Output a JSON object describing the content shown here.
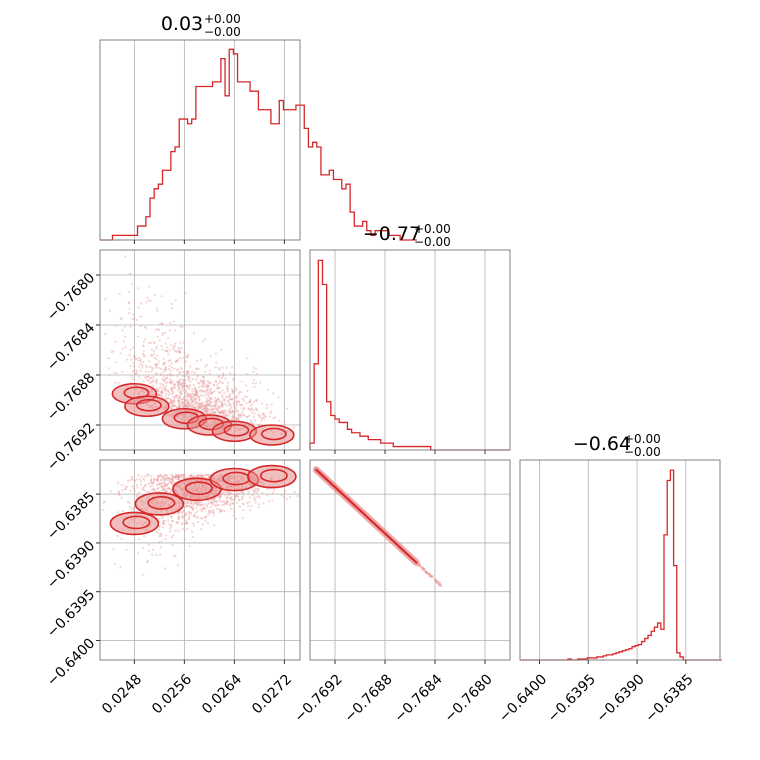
{
  "colors": {
    "series": "#d62728",
    "scatter": "#e8a0a0",
    "contour_fill": "#e88a8b",
    "grid": "#b0b0b0",
    "frame": "#808080"
  },
  "chart_data": [
    {
      "type": "histogram",
      "panel": "diag-0",
      "title": {
        "value": "0.03",
        "upper": "+0.00",
        "lower": "−0.00"
      },
      "xlim": [
        0.02425,
        0.02745
      ],
      "x_ticks": [
        0.0248,
        0.0256,
        0.0264,
        0.0272
      ],
      "bins": {
        "start": 0.02425,
        "width": 6.67e-05
      },
      "counts": [
        0,
        0,
        0,
        1,
        1,
        1,
        1,
        1,
        1,
        3,
        3,
        5,
        9,
        11,
        12,
        15,
        15,
        19,
        20,
        26,
        26,
        25,
        26,
        33,
        33,
        33,
        33,
        34,
        34,
        39,
        31,
        41,
        40,
        34,
        34,
        34,
        32,
        32,
        28,
        28,
        28,
        25,
        25,
        30,
        28,
        28,
        28,
        29,
        29,
        24,
        20,
        21,
        20,
        14,
        14,
        15,
        13,
        13,
        11,
        12,
        6,
        3,
        3,
        4,
        2,
        1,
        2,
        2,
        2,
        1,
        1,
        1,
        0,
        0,
        0,
        0
      ],
      "ylim": [
        0,
        43
      ]
    },
    {
      "type": "histogram",
      "panel": "diag-1",
      "title": {
        "value": "−0.77",
        "upper": "+0.00",
        "lower": "−0.00"
      },
      "xlim": [
        -0.7694,
        -0.7678
      ],
      "x_ticks": [
        -0.7692,
        -0.7688,
        -0.7684,
        -0.768
      ],
      "x_tick_labels": [
        "−0.7692",
        "−0.7688",
        "−0.7684",
        "−0.7680"
      ],
      "bins": {
        "start": -0.7694,
        "width": 3.33e-05
      },
      "counts": [
        2,
        25,
        55,
        48,
        14,
        10,
        9,
        8,
        8,
        6,
        5,
        5,
        4,
        4,
        3,
        3,
        3,
        2,
        2,
        2,
        1,
        1,
        1,
        1,
        1,
        1,
        1,
        1,
        1,
        0,
        0,
        0,
        0,
        0,
        0,
        0,
        0,
        0,
        0,
        0,
        0,
        0,
        0,
        0,
        0,
        0,
        0,
        0
      ],
      "ylim": [
        0,
        58
      ]
    },
    {
      "type": "histogram",
      "panel": "diag-2",
      "title": {
        "value": "−0.64",
        "upper": "+0.00",
        "lower": "−0.00"
      },
      "xlim": [
        -0.6402,
        -0.63815
      ],
      "x_ticks": [
        -0.64,
        -0.6395,
        -0.639,
        -0.6385
      ],
      "x_tick_labels": [
        "−0.6400",
        "−0.6395",
        "−0.6390",
        "−0.6385"
      ],
      "bins": {
        "start": -0.6402,
        "width": 3.28e-05
      },
      "counts": [
        0,
        0,
        0,
        0,
        0,
        0,
        0,
        0,
        0,
        0,
        0,
        0,
        0,
        0,
        0,
        1,
        0,
        0,
        1,
        1,
        1,
        2,
        2,
        2,
        3,
        3,
        4,
        5,
        5,
        6,
        7,
        8,
        9,
        10,
        11,
        13,
        14,
        15,
        18,
        21,
        24,
        28,
        32,
        36,
        30,
        122,
        175,
        185,
        92,
        7,
        3,
        0,
        0,
        0,
        0,
        0,
        0,
        0,
        0,
        0,
        0,
        0,
        0
      ],
      "ylim": [
        0,
        195
      ]
    },
    {
      "type": "scatter",
      "panel": "pair-1-0",
      "xlim": [
        0.02425,
        0.02745
      ],
      "ylim": [
        -0.7694,
        -0.7678
      ],
      "y_ticks": [
        -0.768,
        -0.7684,
        -0.7688,
        -0.7692
      ],
      "y_tick_labels": [
        "−0.7680",
        "−0.7684",
        "−0.7688",
        "−0.7692"
      ],
      "contour_seeds": [
        [
          0.0248,
          -0.76895
        ],
        [
          0.025,
          -0.76905
        ],
        [
          0.0256,
          -0.76915
        ],
        [
          0.026,
          -0.7692
        ],
        [
          0.0264,
          -0.76925
        ],
        [
          0.027,
          -0.76928
        ]
      ]
    },
    {
      "type": "scatter",
      "panel": "pair-2-0",
      "xlim": [
        0.02425,
        0.02745
      ],
      "ylim": [
        -0.6402,
        -0.63815
      ],
      "y_ticks": [
        -0.6385,
        -0.639,
        -0.6395,
        -0.64
      ],
      "y_tick_labels": [
        "−0.6385",
        "−0.6390",
        "−0.6395",
        "−0.6400"
      ],
      "contour_seeds": [
        [
          0.0248,
          -0.6388
        ],
        [
          0.0252,
          -0.6386
        ],
        [
          0.0258,
          -0.63845
        ],
        [
          0.0264,
          -0.63835
        ],
        [
          0.027,
          -0.63832
        ]
      ]
    },
    {
      "type": "scatter",
      "panel": "pair-2-1",
      "xlim": [
        -0.7694,
        -0.7678
      ],
      "ylim": [
        -0.6402,
        -0.63815
      ],
      "line": {
        "from": [
          -0.76935,
          -0.63825
        ],
        "to": [
          -0.76855,
          -0.6392
        ]
      }
    }
  ],
  "x_tick_labels_col0": [
    "0.0248",
    "0.0256",
    "0.0264",
    "0.0272"
  ]
}
